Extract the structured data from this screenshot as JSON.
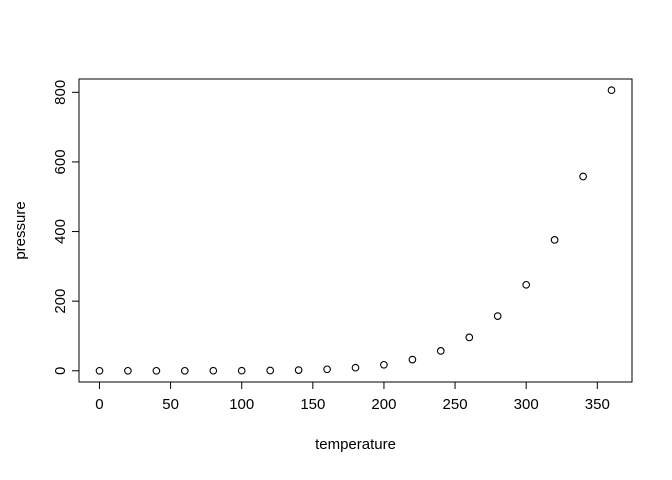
{
  "chart_data": {
    "type": "scatter",
    "title": "",
    "xlabel": "temperature",
    "ylabel": "pressure",
    "x": [
      0,
      20,
      40,
      60,
      80,
      100,
      120,
      140,
      160,
      180,
      200,
      220,
      240,
      260,
      280,
      300,
      320,
      340,
      360
    ],
    "y": [
      0.0002,
      0.0012,
      0.006,
      0.03,
      0.09,
      0.27,
      0.75,
      1.85,
      4.2,
      8.8,
      17.3,
      32.1,
      57,
      96,
      157,
      247,
      376,
      558,
      806
    ],
    "x_ticks": [
      0,
      50,
      100,
      150,
      200,
      250,
      300,
      350
    ],
    "y_ticks": [
      0,
      200,
      400,
      600,
      800
    ],
    "xlim": [
      -14.4,
      374.4
    ],
    "ylim": [
      -32.24,
      838.24
    ],
    "marker": "open-circle",
    "legend": "none",
    "grid": false,
    "colors": {
      "points": "#000000",
      "axis": "#000000",
      "text": "#000000",
      "background": "#ffffff"
    }
  }
}
